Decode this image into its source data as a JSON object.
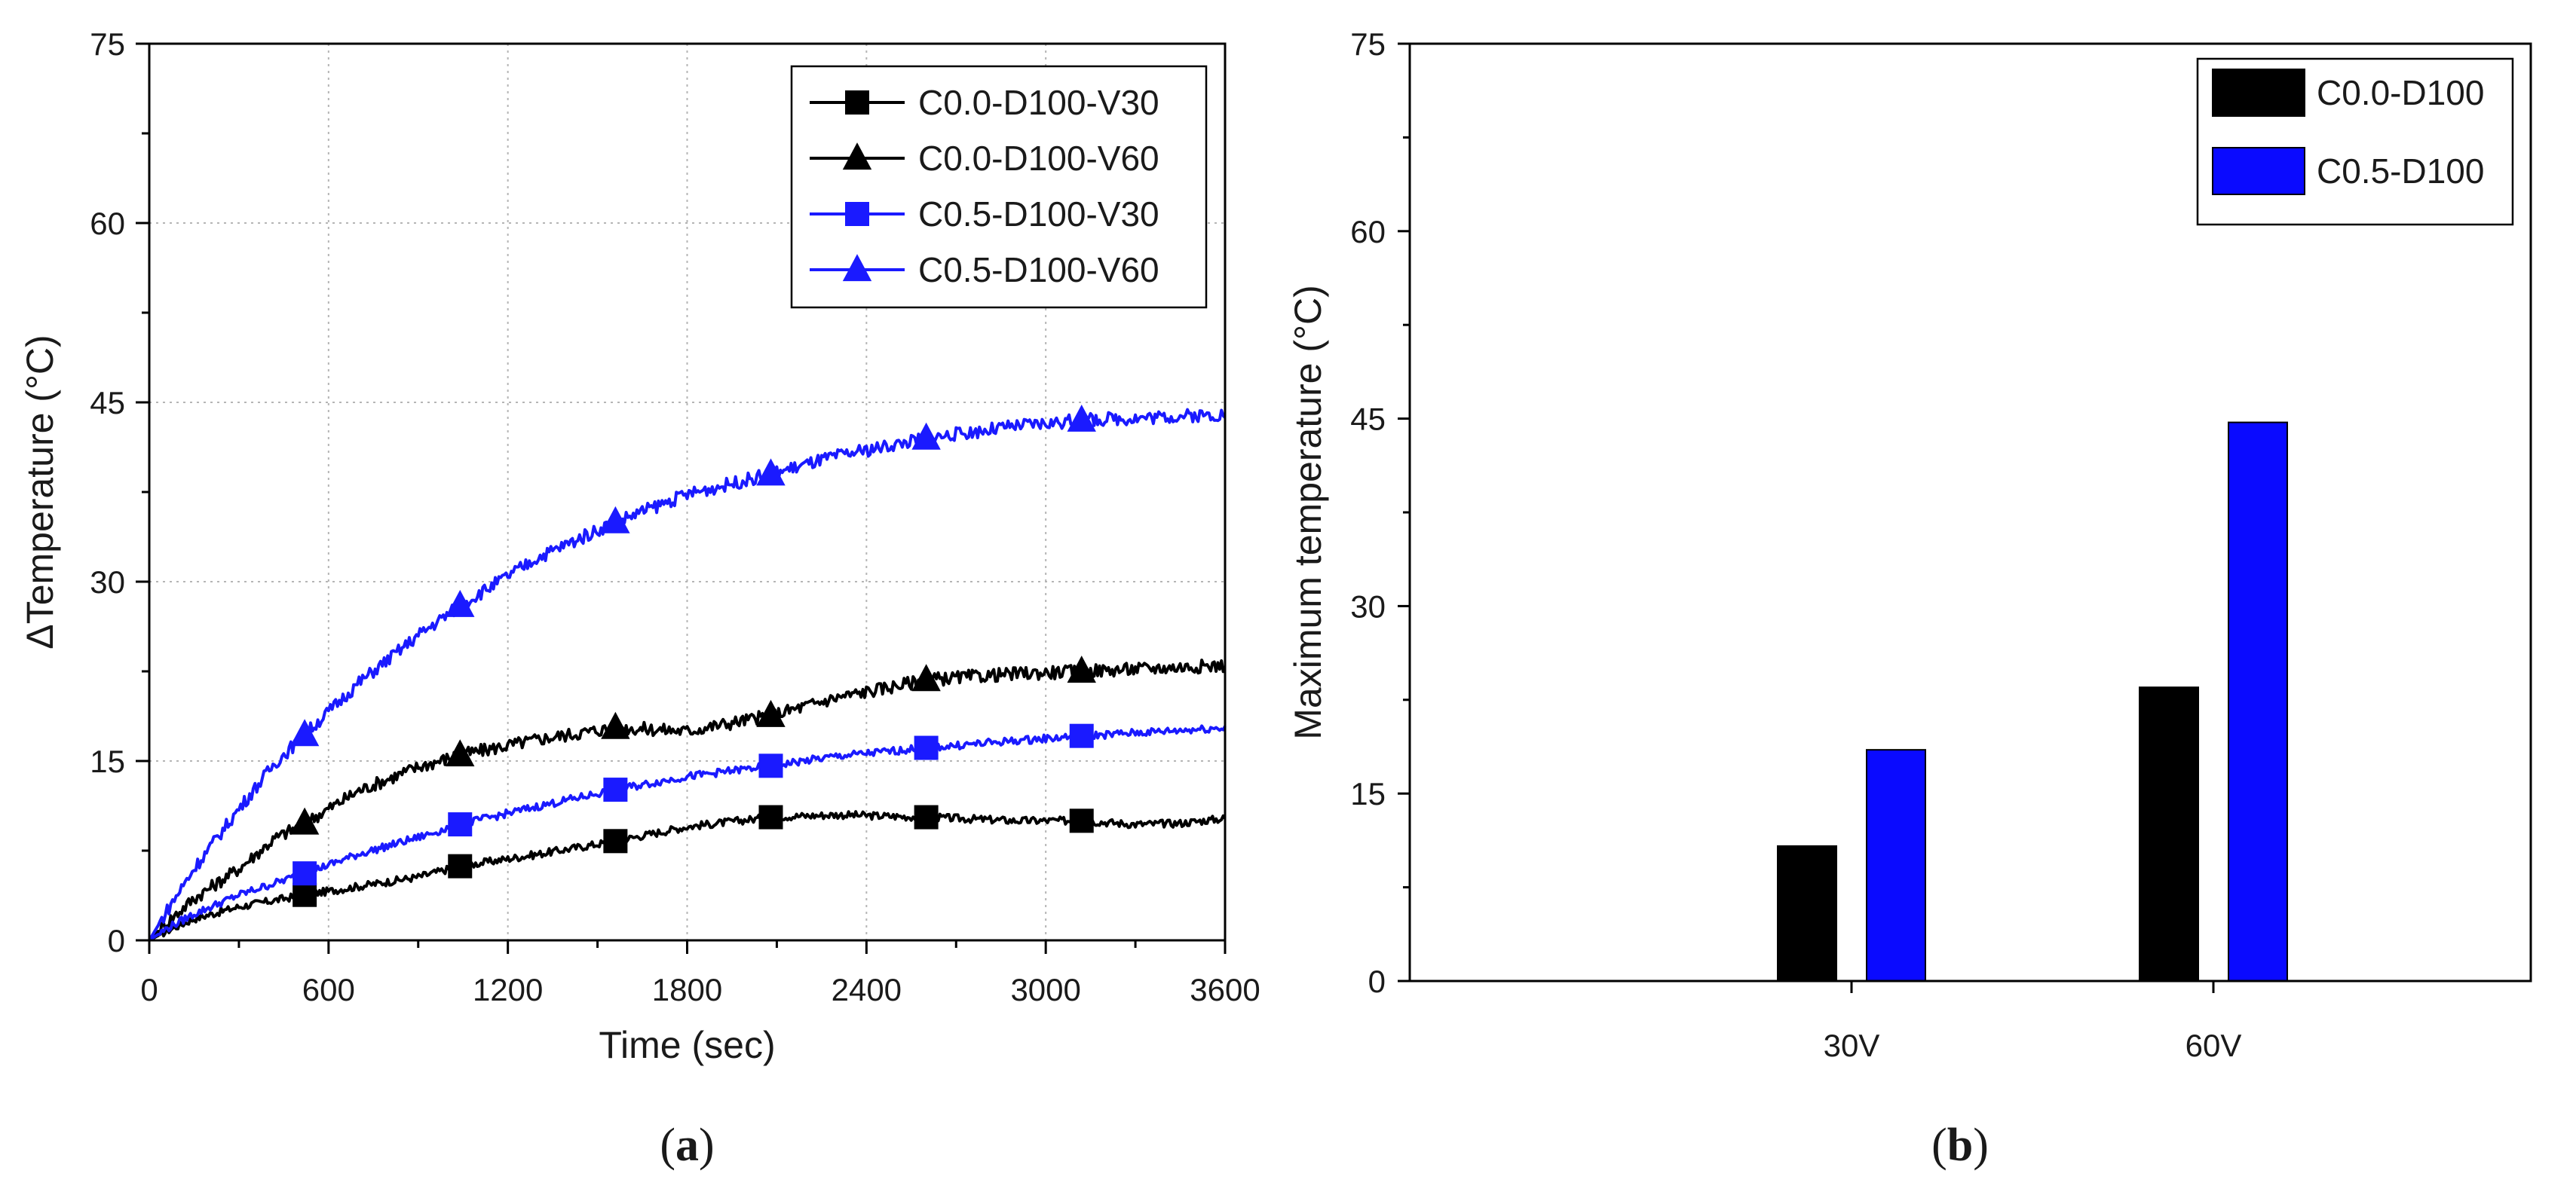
{
  "chart_data": [
    {
      "type": "line",
      "panel_label": "a",
      "xlabel": "Time (sec)",
      "ylabel": "ΔTemperature (°C)",
      "xlim": [
        0,
        3600
      ],
      "ylim": [
        0,
        75
      ],
      "xticks": [
        0,
        600,
        1200,
        1800,
        2400,
        3000,
        3600
      ],
      "yticks": [
        0,
        15,
        30,
        45,
        60,
        75
      ],
      "grid": true,
      "legend_position": "top-right",
      "series": [
        {
          "name": "C0.0-D100-V30",
          "color": "#000000",
          "marker": "square",
          "x": [
            0,
            60,
            150,
            300,
            520,
            700,
            900,
            1040,
            1300,
            1560,
            1800,
            2080,
            2300,
            2600,
            2900,
            3120,
            3300,
            3450,
            3600
          ],
          "y": [
            0,
            0.8,
            1.8,
            2.8,
            3.8,
            4.5,
            5.3,
            6.2,
            7.2,
            8.3,
            9.5,
            10.3,
            10.5,
            10.3,
            10.0,
            10.0,
            9.7,
            9.8,
            10.2
          ],
          "marker_x": [
            520,
            1040,
            1560,
            2080,
            2600,
            3120
          ]
        },
        {
          "name": "C0.0-D100-V60",
          "color": "#000000",
          "marker": "triangle",
          "x": [
            0,
            60,
            150,
            300,
            420,
            520,
            700,
            900,
            1040,
            1300,
            1560,
            1800,
            2080,
            2300,
            2600,
            2900,
            3120,
            3400,
            3600
          ],
          "y": [
            0,
            1.5,
            3.5,
            6.0,
            8.5,
            9.8,
            12.5,
            14.5,
            15.5,
            16.8,
            17.8,
            17.5,
            18.8,
            20.3,
            21.8,
            22.3,
            22.5,
            22.8,
            23.0
          ],
          "marker_x": [
            520,
            1040,
            1560,
            2080,
            2600,
            3120
          ]
        },
        {
          "name": "C0.5-D100-V30",
          "color": "#1a1aff",
          "marker": "square",
          "x": [
            0,
            60,
            150,
            300,
            520,
            700,
            900,
            1040,
            1300,
            1560,
            1800,
            2080,
            2300,
            2600,
            2900,
            3120,
            3400,
            3600
          ],
          "y": [
            0,
            1.0,
            2.2,
            3.8,
            5.6,
            7.2,
            8.6,
            9.7,
            11.2,
            12.6,
            13.7,
            14.6,
            15.4,
            16.1,
            16.7,
            17.1,
            17.5,
            17.8
          ],
          "marker_x": [
            520,
            1040,
            1560,
            2080,
            2600,
            3120
          ]
        },
        {
          "name": "C0.5-D100-V60",
          "color": "#1a1aff",
          "marker": "triangle",
          "x": [
            0,
            60,
            150,
            300,
            420,
            520,
            700,
            900,
            1040,
            1300,
            1560,
            1800,
            2080,
            2300,
            2600,
            2900,
            3120,
            3400,
            3600
          ],
          "y": [
            0,
            2.5,
            6.0,
            11.0,
            14.8,
            17.2,
            21.5,
            25.5,
            28.0,
            32.0,
            35.0,
            37.3,
            39.0,
            40.5,
            42.0,
            43.0,
            43.5,
            43.8,
            44.0
          ],
          "marker_x": [
            520,
            1040,
            1560,
            2080,
            2600,
            3120
          ]
        }
      ]
    },
    {
      "type": "bar",
      "panel_label": "b",
      "xlabel": "",
      "ylabel": "Maximum temperature (°C)",
      "ylim": [
        0,
        75
      ],
      "yticks": [
        0,
        15,
        30,
        45,
        60,
        75
      ],
      "categories": [
        "30V",
        "60V"
      ],
      "grid": false,
      "legend_position": "top-right",
      "series": [
        {
          "name": "C0.0-D100",
          "color": "#000000",
          "values": [
            10.8,
            23.5
          ]
        },
        {
          "name": "C0.5-D100",
          "color": "#0a0aff",
          "values": [
            18.5,
            44.7
          ]
        }
      ]
    }
  ]
}
